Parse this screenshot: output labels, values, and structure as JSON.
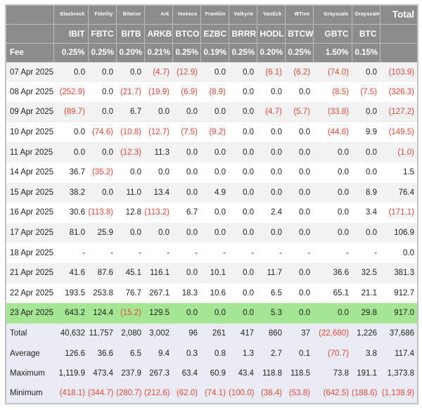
{
  "colors": {
    "header_bg": "#8c8c8c",
    "header_text": "#ffffff",
    "stripe_bg": "#f2f2f2",
    "row_bg": "#ffffff",
    "highlight_bg": "#a4e694",
    "summary_bg": "#eaebf5",
    "negative_text": "#e8493e",
    "text": "#222222",
    "border": "#c2c2c2"
  },
  "chart_data": {
    "type": "table",
    "corner_label": "",
    "total_column_label": "Total",
    "fee_row_label": "Fee",
    "funds": [
      {
        "name": "Blackrock",
        "ticker": "IBIT",
        "fee": "0.25%"
      },
      {
        "name": "Fidelity",
        "ticker": "FBTC",
        "fee": "0.25%"
      },
      {
        "name": "Bitwise",
        "ticker": "BITB",
        "fee": "0.20%"
      },
      {
        "name": "Ark",
        "ticker": "ARKB",
        "fee": "0.21%"
      },
      {
        "name": "Invesco",
        "ticker": "BTCO",
        "fee": "0.25%"
      },
      {
        "name": "Franklin",
        "ticker": "EZBC",
        "fee": "0.19%"
      },
      {
        "name": "Valkyrie",
        "ticker": "BRRR",
        "fee": "0.25%"
      },
      {
        "name": "VanEck",
        "ticker": "HODL",
        "fee": "0.20%"
      },
      {
        "name": "WTree",
        "ticker": "BTCW",
        "fee": "0.25%"
      },
      {
        "name": "Grayscale",
        "ticker": "GBTC",
        "fee": "1.50%"
      },
      {
        "name": "Grayscale",
        "ticker": "BTC",
        "fee": "0.15%"
      }
    ],
    "highlighted_row": "23 Apr 2025",
    "rows": [
      {
        "label": "07 Apr 2025",
        "values": [
          "0.0",
          "0.0",
          "0.0",
          "(4.7)",
          "(12.9)",
          "0.0",
          "0.0",
          "(6.1)",
          "(6.2)",
          "(74.0)",
          "0.0",
          "(103.9)"
        ]
      },
      {
        "label": "08 Apr 2025",
        "values": [
          "(252.9)",
          "0.0",
          "(21.7)",
          "(19.9)",
          "(6.9)",
          "(8.9)",
          "0.0",
          "0.0",
          "0.0",
          "(8.5)",
          "(7.5)",
          "(326.3)"
        ]
      },
      {
        "label": "09 Apr 2025",
        "values": [
          "(89.7)",
          "0.0",
          "6.7",
          "0.0",
          "0.0",
          "0.0",
          "0.0",
          "(4.7)",
          "(5.7)",
          "(33.8)",
          "0.0",
          "(127.2)"
        ]
      },
      {
        "label": "10 Apr 2025",
        "values": [
          "0.0",
          "(74.6)",
          "(10.8)",
          "(12.7)",
          "(7.5)",
          "(9.2)",
          "0.0",
          "0.0",
          "0.0",
          "(44.6)",
          "9.9",
          "(149.5)"
        ]
      },
      {
        "label": "11 Apr 2025",
        "values": [
          "0.0",
          "0.0",
          "(12.3)",
          "11.3",
          "0.0",
          "0.0",
          "0.0",
          "0.0",
          "0.0",
          "0.0",
          "0.0",
          "(1.0)"
        ]
      },
      {
        "label": "14 Apr 2025",
        "values": [
          "36.7",
          "(35.2)",
          "0.0",
          "0.0",
          "0.0",
          "0.0",
          "0.0",
          "0.0",
          "0.0",
          "0.0",
          "0.0",
          "1.5"
        ]
      },
      {
        "label": "15 Apr 2025",
        "values": [
          "38.2",
          "0.0",
          "11.0",
          "13.4",
          "0.0",
          "4.9",
          "0.0",
          "0.0",
          "0.0",
          "0.0",
          "8.9",
          "76.4"
        ]
      },
      {
        "label": "16 Apr 2025",
        "values": [
          "30.6",
          "(113.8)",
          "12.8",
          "(113.2)",
          "6.7",
          "0.0",
          "0.0",
          "2.4",
          "0.0",
          "0.0",
          "3.4",
          "(171.1)"
        ]
      },
      {
        "label": "17 Apr 2025",
        "values": [
          "81.0",
          "25.9",
          "0.0",
          "0.0",
          "0.0",
          "0.0",
          "0.0",
          "0.0",
          "0.0",
          "0.0",
          "0.0",
          "106.9"
        ]
      },
      {
        "label": "18 Apr 2025",
        "values": [
          "-",
          "-",
          "-",
          "-",
          "-",
          "-",
          "-",
          "-",
          "-",
          "-",
          "-",
          "0.0"
        ]
      },
      {
        "label": "21 Apr 2025",
        "values": [
          "41.6",
          "87.6",
          "45.1",
          "116.1",
          "0.0",
          "10.1",
          "0.0",
          "11.7",
          "0.0",
          "36.6",
          "32.5",
          "381.3"
        ]
      },
      {
        "label": "22 Apr 2025",
        "values": [
          "193.5",
          "253.8",
          "76.7",
          "267.1",
          "18.3",
          "10.6",
          "0.0",
          "6.5",
          "0.0",
          "65.1",
          "21.1",
          "912.7"
        ]
      },
      {
        "label": "23 Apr 2025",
        "values": [
          "643.2",
          "124.4",
          "(15.2)",
          "129.5",
          "0.0",
          "0.0",
          "0.0",
          "5.3",
          "0.0",
          "0.0",
          "29.8",
          "917.0"
        ]
      }
    ],
    "summary_rows": [
      {
        "label": "Total",
        "values": [
          "40,632",
          "11,757",
          "2,080",
          "3,002",
          "96",
          "261",
          "417",
          "860",
          "37",
          "(22,680)",
          "1,226",
          "37,686"
        ]
      },
      {
        "label": "Average",
        "values": [
          "126.6",
          "36.6",
          "6.5",
          "9.4",
          "0.3",
          "0.8",
          "1.3",
          "2.7",
          "0.1",
          "(70.7)",
          "3.8",
          "117.4"
        ]
      },
      {
        "label": "Maximum",
        "values": [
          "1,119.9",
          "473.4",
          "237.9",
          "267.3",
          "63.4",
          "60.9",
          "43.4",
          "118.8",
          "118.5",
          "73.8",
          "191.1",
          "1,373.8"
        ]
      },
      {
        "label": "Minimum",
        "values": [
          "(418.1)",
          "(344.7)",
          "(280.7)",
          "(212.6)",
          "(62.0)",
          "(74.1)",
          "(100.0)",
          "(38.4)",
          "(53.8)",
          "(642.5)",
          "(188.6)",
          "(1,138.9)"
        ]
      }
    ]
  }
}
